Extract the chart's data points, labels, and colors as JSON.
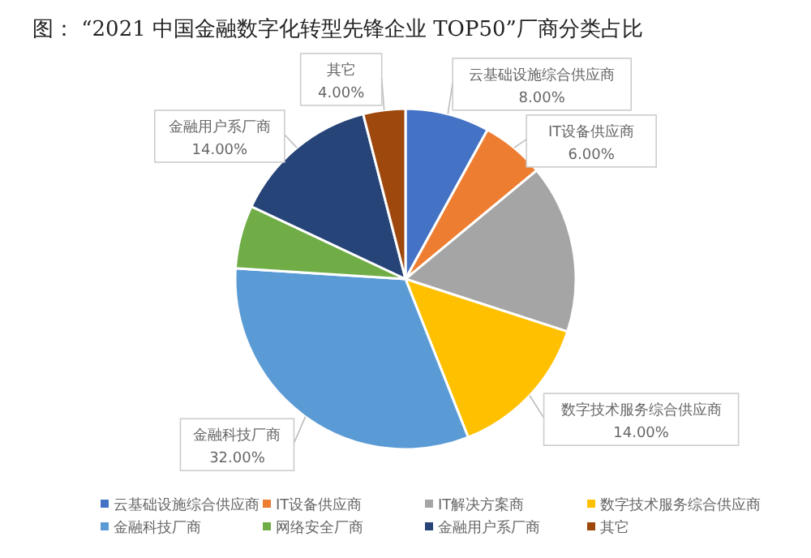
{
  "chart_data": {
    "type": "pie",
    "title": "图：    “2021 中国金融数字化转型先锋企业 TOP50”厂商分类占比",
    "categories": [
      "云基础设施综合供应商",
      "IT设备供应商",
      "IT解决方案商",
      "数字技术服务综合供应商",
      "金融科技厂商",
      "网络安全厂商",
      "金融用户系厂商",
      "其它"
    ],
    "values": [
      8,
      6,
      16,
      14,
      32,
      6,
      14,
      4
    ],
    "colors": [
      "#4472c4",
      "#ed7d31",
      "#a5a5a5",
      "#ffc000",
      "#5b9bd5",
      "#70ad47",
      "#264478",
      "#9e480e"
    ],
    "value_labels": [
      "8.00%",
      "6.00%",
      null,
      "14.00%",
      "32.00%",
      null,
      "14.00%",
      "4.00%"
    ],
    "legend": "bottom"
  }
}
